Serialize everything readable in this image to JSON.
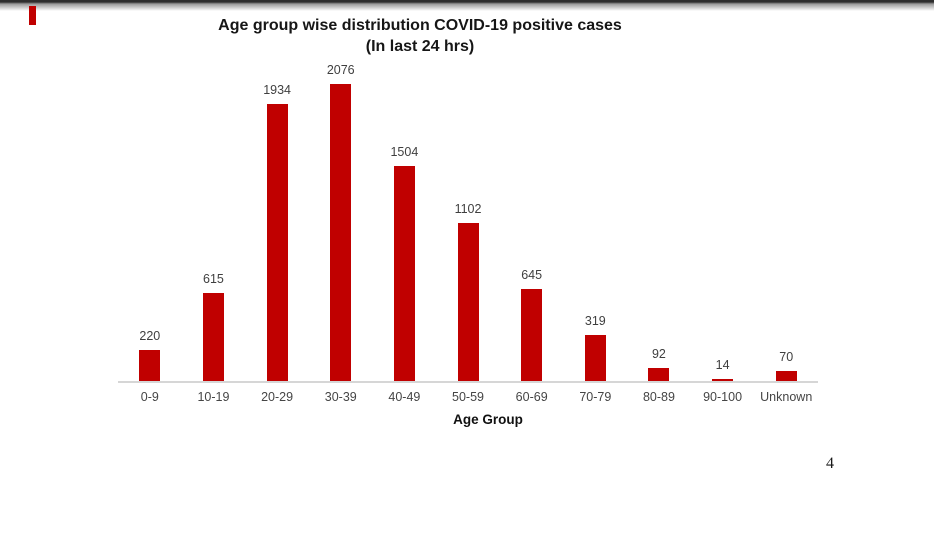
{
  "page": {
    "page_number": "4",
    "accent_red": "#C00000",
    "background": "#FFFFFF"
  },
  "chart_data": {
    "type": "bar",
    "title": "Age group wise distribution COVID-19 positive cases",
    "subtitle": "(In last 24 hrs)",
    "xlabel": "Age Group",
    "ylabel": "",
    "categories": [
      "0-9",
      "10-19",
      "20-29",
      "30-39",
      "40-49",
      "50-59",
      "60-69",
      "70-79",
      "80-89",
      "90-100",
      "Unknown"
    ],
    "values": [
      220,
      615,
      1934,
      2076,
      1504,
      1102,
      645,
      319,
      92,
      14,
      70
    ],
    "bar_color": "#C00000",
    "value_label_color": "#3F3F3F",
    "axis_line_color": "#D6D6D6",
    "ylim": [
      0,
      2200
    ],
    "grid": false,
    "legend": "none",
    "data_labels_shown": true
  }
}
